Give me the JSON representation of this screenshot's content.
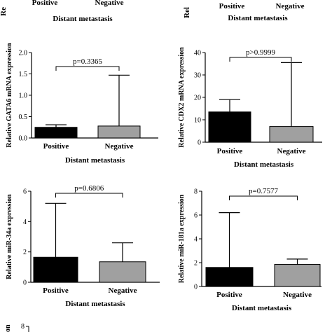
{
  "top_partial": {
    "left": {
      "categories": [
        "Positive",
        "Negative"
      ],
      "xlabel": "Distant metastasis",
      "ylabel_fragment": "Re"
    },
    "right": {
      "categories": [
        "Positive",
        "Negative"
      ],
      "xlabel": "Distant metastasis",
      "ylabel_fragment": "Rel"
    }
  },
  "bottom_partial": {
    "ytick": "8",
    "ylabel_fragment": "on"
  },
  "chart_data": [
    {
      "type": "bar",
      "categories": [
        "Positive",
        "Negative"
      ],
      "values": [
        0.25,
        0.28
      ],
      "error_upper": [
        0.31,
        1.47
      ],
      "ylabel": "Relative GATA6 mRNA expression",
      "xlabel": "Distant metastasis",
      "ylim": [
        0,
        2.0
      ],
      "yticks": [
        "0.0",
        "0.5",
        "1.0",
        "1.5",
        "2.0"
      ],
      "ytick_values": [
        0,
        0.5,
        1.0,
        1.5,
        2.0
      ],
      "annotation": "p=0.3365",
      "bar_colors": [
        "#000000",
        "#a0a0a0"
      ]
    },
    {
      "type": "bar",
      "categories": [
        "Positive",
        "Negative"
      ],
      "values": [
        13.5,
        7.0
      ],
      "error_upper": [
        19.0,
        35.5
      ],
      "ylabel": "Relative CDX2 mRNA expression",
      "xlabel": "Distant metastasis",
      "ylim": [
        0,
        40
      ],
      "yticks": [
        "0",
        "10",
        "20",
        "30",
        "40"
      ],
      "ytick_values": [
        0,
        10,
        20,
        30,
        40
      ],
      "annotation": "p>0.9999",
      "bar_colors": [
        "#000000",
        "#a0a0a0"
      ]
    },
    {
      "type": "bar",
      "categories": [
        "Positive",
        "Negative"
      ],
      "values": [
        1.65,
        1.35
      ],
      "error_upper": [
        5.2,
        2.6
      ],
      "ylabel": "Relative miR-34a expression",
      "xlabel": "Distant metastasis",
      "ylim": [
        0,
        6
      ],
      "yticks": [
        "0",
        "2",
        "4",
        "6"
      ],
      "ytick_values": [
        0,
        2,
        4,
        6
      ],
      "annotation": "p=0.6806",
      "bar_colors": [
        "#000000",
        "#a0a0a0"
      ]
    },
    {
      "type": "bar",
      "categories": [
        "Positive",
        "Negative"
      ],
      "values": [
        1.6,
        1.85
      ],
      "error_upper": [
        6.2,
        2.3
      ],
      "ylabel": "Relative miR-181a expression",
      "xlabel": "Distant metastasis",
      "ylim": [
        0,
        8
      ],
      "yticks": [
        "0",
        "2",
        "4",
        "6",
        "8"
      ],
      "ytick_values": [
        0,
        2,
        4,
        6,
        8
      ],
      "annotation": "p=0.7577",
      "bar_colors": [
        "#000000",
        "#a0a0a0"
      ]
    }
  ]
}
